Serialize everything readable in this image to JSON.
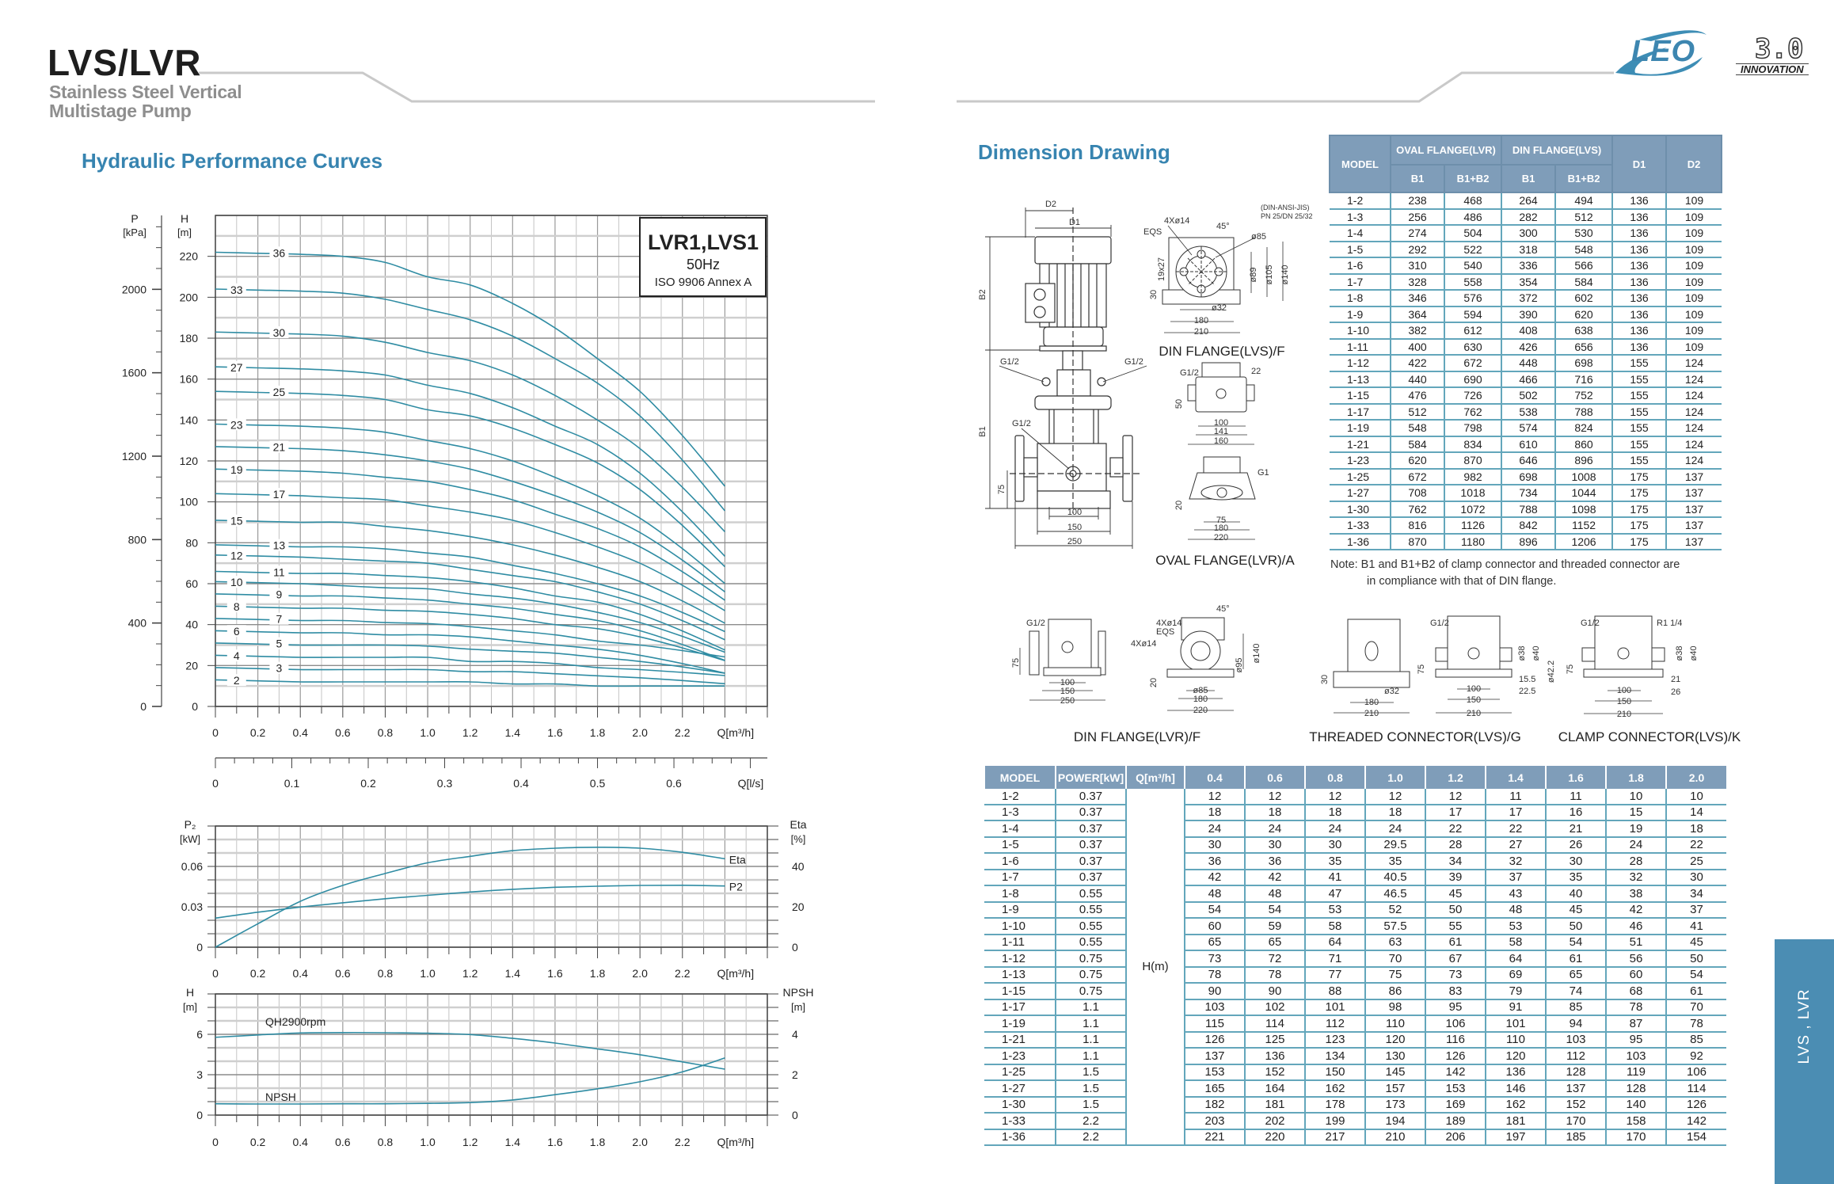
{
  "header": {
    "title": "LVS/LVR",
    "subtitle_line1": "Stainless Steel Vertical",
    "subtitle_line2": "Multistage Pump",
    "logo_text": "LEO",
    "logo_version": "3.0",
    "logo_tagline": "INNOVATION"
  },
  "side_tab": "LVS , LVR",
  "hydraulic": {
    "heading": "Hydraulic Performance Curves"
  },
  "dimension": {
    "heading": "Dimension Drawing",
    "main": {
      "d2": "D2",
      "d1": "D1",
      "b2": "B2",
      "b1": "B1",
      "d75": "75",
      "d100": "100",
      "d150": "150",
      "d250": "250",
      "g1": "G1/2",
      "g2": "G1/2",
      "g3": "G1/2"
    },
    "din_lvs": {
      "title": "DIN FLANGE(LVS)/F",
      "std": "(DIN-ANSI-JIS)",
      "pn": "PN 25/DN 25/32",
      "holes": "4Xø14",
      "eqs": "EQS",
      "angle": "45°",
      "d85": "ø85",
      "slot": "19x27",
      "d89": "ø89",
      "d105": "ø105",
      "d140": "ø140",
      "h30": "30",
      "d32": "ø32",
      "w180": "180",
      "w210": "210"
    },
    "oval_side": {
      "g": "G1/2",
      "d22": "22",
      "h50": "50",
      "w100": "100",
      "w141": "141",
      "w160": "160"
    },
    "oval_lvr": {
      "title": "OVAL FLANGE(LVR)/A",
      "g": "G1",
      "h20": "20",
      "w75": "75",
      "w180": "180",
      "w220": "220"
    },
    "din_lvr": {
      "title": "DIN FLANGE(LVR)/F",
      "g": "G1/2",
      "h75": "75",
      "w100": "100",
      "w150": "150",
      "w250": "250",
      "angle": "45°",
      "holes1": "4Xø14",
      "eqs": "EQS",
      "holes2": "4Xø14",
      "d140": "ø140",
      "d95": "ø95",
      "h20": "20",
      "d85": "ø85",
      "w180": "180",
      "w220": "220"
    },
    "threaded": {
      "title": "THREADED CONNECTOR(LVS)/G",
      "h30": "30",
      "d32": "ø32",
      "w180": "180",
      "w210a": "210",
      "g": "G1/2",
      "d38": "ø38",
      "d40": "ø40",
      "d42": "ø42.2",
      "h75": "75",
      "d155": "15.5",
      "d225": "22.5",
      "w100": "100",
      "w150": "150",
      "w210b": "210"
    },
    "clamp": {
      "title": "CLAMP CONNECTOR(LVS)/K",
      "g": "G1/2",
      "r": "R1 1/4",
      "d38": "ø38",
      "d40": "ø40",
      "h75": "75",
      "d21": "21",
      "d26": "26",
      "w100": "100",
      "w150": "150",
      "w210": "210"
    }
  },
  "dim_table": {
    "headers": {
      "model": "MODEL",
      "oval": "OVAL FLANGE(LVR)",
      "din": "DIN FLANGE(LVS)",
      "b1": "B1",
      "b1b2": "B1+B2",
      "d1": "D1",
      "d2": "D2"
    },
    "rows": [
      [
        "1-2",
        "238",
        "468",
        "264",
        "494",
        "136",
        "109"
      ],
      [
        "1-3",
        "256",
        "486",
        "282",
        "512",
        "136",
        "109"
      ],
      [
        "1-4",
        "274",
        "504",
        "300",
        "530",
        "136",
        "109"
      ],
      [
        "1-5",
        "292",
        "522",
        "318",
        "548",
        "136",
        "109"
      ],
      [
        "1-6",
        "310",
        "540",
        "336",
        "566",
        "136",
        "109"
      ],
      [
        "1-7",
        "328",
        "558",
        "354",
        "584",
        "136",
        "109"
      ],
      [
        "1-8",
        "346",
        "576",
        "372",
        "602",
        "136",
        "109"
      ],
      [
        "1-9",
        "364",
        "594",
        "390",
        "620",
        "136",
        "109"
      ],
      [
        "1-10",
        "382",
        "612",
        "408",
        "638",
        "136",
        "109"
      ],
      [
        "1-11",
        "400",
        "630",
        "426",
        "656",
        "136",
        "109"
      ],
      [
        "1-12",
        "422",
        "672",
        "448",
        "698",
        "155",
        "124"
      ],
      [
        "1-13",
        "440",
        "690",
        "466",
        "716",
        "155",
        "124"
      ],
      [
        "1-15",
        "476",
        "726",
        "502",
        "752",
        "155",
        "124"
      ],
      [
        "1-17",
        "512",
        "762",
        "538",
        "788",
        "155",
        "124"
      ],
      [
        "1-19",
        "548",
        "798",
        "574",
        "824",
        "155",
        "124"
      ],
      [
        "1-21",
        "584",
        "834",
        "610",
        "860",
        "155",
        "124"
      ],
      [
        "1-23",
        "620",
        "870",
        "646",
        "896",
        "155",
        "124"
      ],
      [
        "1-25",
        "672",
        "982",
        "698",
        "1008",
        "175",
        "137"
      ],
      [
        "1-27",
        "708",
        "1018",
        "734",
        "1044",
        "175",
        "137"
      ],
      [
        "1-30",
        "762",
        "1072",
        "788",
        "1098",
        "175",
        "137"
      ],
      [
        "1-33",
        "816",
        "1126",
        "842",
        "1152",
        "175",
        "137"
      ],
      [
        "1-36",
        "870",
        "1180",
        "896",
        "1206",
        "175",
        "137"
      ]
    ],
    "note_line1": "Note: B1 and B1+B2 of clamp connector and threaded connector are",
    "note_line2": "in compliance with that of DIN flange."
  },
  "perf_table": {
    "headers": [
      "MODEL",
      "POWER[kW]",
      "Q[m³/h]",
      "0.4",
      "0.6",
      "0.8",
      "1.0",
      "1.2",
      "1.4",
      "1.6",
      "1.8",
      "2.0"
    ],
    "h_label": "H(m)",
    "rows": [
      [
        "1-2",
        "0.37",
        "12",
        "12",
        "12",
        "12",
        "12",
        "11",
        "11",
        "10",
        "10"
      ],
      [
        "1-3",
        "0.37",
        "18",
        "18",
        "18",
        "18",
        "17",
        "17",
        "16",
        "15",
        "14"
      ],
      [
        "1-4",
        "0.37",
        "24",
        "24",
        "24",
        "24",
        "22",
        "22",
        "21",
        "19",
        "18"
      ],
      [
        "1-5",
        "0.37",
        "30",
        "30",
        "30",
        "29.5",
        "28",
        "27",
        "26",
        "24",
        "22"
      ],
      [
        "1-6",
        "0.37",
        "36",
        "36",
        "35",
        "35",
        "34",
        "32",
        "30",
        "28",
        "25"
      ],
      [
        "1-7",
        "0.37",
        "42",
        "42",
        "41",
        "40.5",
        "39",
        "37",
        "35",
        "32",
        "30"
      ],
      [
        "1-8",
        "0.55",
        "48",
        "48",
        "47",
        "46.5",
        "45",
        "43",
        "40",
        "38",
        "34"
      ],
      [
        "1-9",
        "0.55",
        "54",
        "54",
        "53",
        "52",
        "50",
        "48",
        "45",
        "42",
        "37"
      ],
      [
        "1-10",
        "0.55",
        "60",
        "59",
        "58",
        "57.5",
        "55",
        "53",
        "50",
        "46",
        "41"
      ],
      [
        "1-11",
        "0.55",
        "65",
        "65",
        "64",
        "63",
        "61",
        "58",
        "54",
        "51",
        "45"
      ],
      [
        "1-12",
        "0.75",
        "73",
        "72",
        "71",
        "70",
        "67",
        "64",
        "61",
        "56",
        "50"
      ],
      [
        "1-13",
        "0.75",
        "78",
        "78",
        "77",
        "75",
        "73",
        "69",
        "65",
        "60",
        "54"
      ],
      [
        "1-15",
        "0.75",
        "90",
        "90",
        "88",
        "86",
        "83",
        "79",
        "74",
        "68",
        "61"
      ],
      [
        "1-17",
        "1.1",
        "103",
        "102",
        "101",
        "98",
        "95",
        "91",
        "85",
        "78",
        "70"
      ],
      [
        "1-19",
        "1.1",
        "115",
        "114",
        "112",
        "110",
        "106",
        "101",
        "94",
        "87",
        "78"
      ],
      [
        "1-21",
        "1.1",
        "126",
        "125",
        "123",
        "120",
        "116",
        "110",
        "103",
        "95",
        "85"
      ],
      [
        "1-23",
        "1.1",
        "137",
        "136",
        "134",
        "130",
        "126",
        "120",
        "112",
        "103",
        "92"
      ],
      [
        "1-25",
        "1.5",
        "153",
        "152",
        "150",
        "145",
        "142",
        "136",
        "128",
        "119",
        "106"
      ],
      [
        "1-27",
        "1.5",
        "165",
        "164",
        "162",
        "157",
        "153",
        "146",
        "137",
        "128",
        "114"
      ],
      [
        "1-30",
        "1.5",
        "182",
        "181",
        "178",
        "173",
        "169",
        "162",
        "152",
        "140",
        "126"
      ],
      [
        "1-33",
        "2.2",
        "203",
        "202",
        "199",
        "194",
        "189",
        "181",
        "170",
        "158",
        "142"
      ],
      [
        "1-36",
        "2.2",
        "221",
        "220",
        "217",
        "210",
        "206",
        "197",
        "185",
        "170",
        "154"
      ]
    ]
  },
  "chart_data": [
    {
      "type": "line",
      "title": "LVR1,LVS1",
      "subtitle": "50Hz",
      "note": "ISO 9906 Annex A",
      "xlabel": "Q[m³/h]",
      "x2label": "Q[l/s]",
      "ylabel": "H",
      "yunit": "[m]",
      "plabel": "P",
      "punit": "[kPa]",
      "xlim": [
        0,
        2.6
      ],
      "ylim": [
        0,
        240
      ],
      "grid": true,
      "x_ticks": [
        "0",
        "0.2",
        "0.4",
        "0.6",
        "0.8",
        "1.0",
        "1.2",
        "1.4",
        "1.6",
        "1.8",
        "2.0",
        "2.2"
      ],
      "y_ticks": [
        "0",
        "20",
        "40",
        "60",
        "80",
        "100",
        "120",
        "140",
        "160",
        "180",
        "200",
        "220"
      ],
      "p_ticks": [
        "0",
        "400",
        "800",
        "1200",
        "1600",
        "2000"
      ],
      "ls_ticks": [
        "0",
        "0.1",
        "0.2",
        "0.3",
        "0.4",
        "0.5",
        "0.6"
      ],
      "x": [
        0.4,
        0.6,
        0.8,
        1.0,
        1.2,
        1.4,
        1.6,
        1.8,
        2.0
      ],
      "series": [
        {
          "name": "1-36",
          "label": "36",
          "values": [
            221,
            220,
            217,
            210,
            206,
            197,
            185,
            170,
            154
          ]
        },
        {
          "name": "1-33",
          "label": "33",
          "values": [
            203,
            202,
            199,
            194,
            189,
            181,
            170,
            158,
            142
          ]
        },
        {
          "name": "1-30",
          "label": "30",
          "values": [
            182,
            181,
            178,
            173,
            169,
            162,
            152,
            140,
            126
          ]
        },
        {
          "name": "1-27",
          "label": "27",
          "values": [
            165,
            164,
            162,
            157,
            153,
            146,
            137,
            128,
            114
          ]
        },
        {
          "name": "1-25",
          "label": "25",
          "values": [
            153,
            152,
            150,
            145,
            142,
            136,
            128,
            119,
            106
          ]
        },
        {
          "name": "1-23",
          "label": "23",
          "values": [
            137,
            136,
            134,
            130,
            126,
            120,
            112,
            103,
            92
          ]
        },
        {
          "name": "1-21",
          "label": "21",
          "values": [
            126,
            125,
            123,
            120,
            116,
            110,
            103,
            95,
            85
          ]
        },
        {
          "name": "1-19",
          "label": "19",
          "values": [
            115,
            114,
            112,
            110,
            106,
            101,
            94,
            87,
            78
          ]
        },
        {
          "name": "1-17",
          "label": "17",
          "values": [
            103,
            102,
            101,
            98,
            95,
            91,
            85,
            78,
            70
          ]
        },
        {
          "name": "1-15",
          "label": "15",
          "values": [
            90,
            90,
            88,
            86,
            83,
            79,
            74,
            68,
            61
          ]
        },
        {
          "name": "1-13",
          "label": "13",
          "values": [
            78,
            78,
            77,
            75,
            73,
            69,
            65,
            60,
            54
          ]
        },
        {
          "name": "1-12",
          "label": "12",
          "values": [
            73,
            72,
            71,
            70,
            67,
            64,
            61,
            56,
            50
          ]
        },
        {
          "name": "1-11",
          "label": "11",
          "values": [
            65,
            65,
            64,
            63,
            61,
            58,
            54,
            51,
            45
          ]
        },
        {
          "name": "1-10",
          "label": "10",
          "values": [
            60,
            59,
            58,
            57.5,
            55,
            53,
            50,
            46,
            41
          ]
        },
        {
          "name": "1-9",
          "label": "9",
          "values": [
            54,
            54,
            53,
            52,
            50,
            48,
            45,
            42,
            37
          ]
        },
        {
          "name": "1-8",
          "label": "8",
          "values": [
            48,
            48,
            47,
            46.5,
            45,
            43,
            40,
            38,
            34
          ]
        },
        {
          "name": "1-7",
          "label": "7",
          "values": [
            42,
            42,
            41,
            40.5,
            39,
            37,
            35,
            32,
            30
          ]
        },
        {
          "name": "1-6",
          "label": "6",
          "values": [
            36,
            36,
            35,
            35,
            34,
            32,
            30,
            28,
            25
          ]
        },
        {
          "name": "1-5",
          "label": "5",
          "values": [
            30,
            30,
            30,
            29.5,
            28,
            27,
            26,
            24,
            22
          ]
        },
        {
          "name": "1-4",
          "label": "4",
          "values": [
            24,
            24,
            24,
            24,
            22,
            22,
            21,
            19,
            18
          ]
        },
        {
          "name": "1-3",
          "label": "3",
          "values": [
            18,
            18,
            18,
            18,
            17,
            17,
            16,
            15,
            14
          ]
        },
        {
          "name": "1-2",
          "label": "2",
          "values": [
            12,
            12,
            12,
            12,
            12,
            11,
            11,
            10,
            10
          ]
        }
      ]
    },
    {
      "type": "line",
      "xlabel": "Q[m³/h]",
      "ylabel": "P₂",
      "yunit": "[kW]",
      "y2label": "Eta",
      "y2unit": "[%]",
      "xlim": [
        0,
        2.6
      ],
      "ylim": [
        0,
        0.09
      ],
      "y2lim": [
        0,
        60
      ],
      "x_ticks": [
        "0",
        "0.2",
        "0.4",
        "0.6",
        "0.8",
        "1.0",
        "1.2",
        "1.4",
        "1.6",
        "1.8",
        "2.0",
        "2.2"
      ],
      "y_ticks": [
        "0",
        "0.03",
        "0.06"
      ],
      "y2_ticks": [
        "0",
        "20",
        "40"
      ],
      "x": [
        0,
        0.2,
        0.4,
        0.6,
        0.8,
        1.0,
        1.2,
        1.4,
        1.6,
        1.8,
        2.0,
        2.2,
        2.4
      ],
      "series": [
        {
          "name": "Eta",
          "axis": "right",
          "values": [
            0,
            11.6,
            22.7,
            30.6,
            36.5,
            41.8,
            45,
            47.8,
            49,
            49.5,
            49,
            47,
            43.8
          ]
        },
        {
          "name": "P2",
          "axis": "left",
          "values": [
            0.0216,
            0.026,
            0.0298,
            0.033,
            0.036,
            0.0385,
            0.041,
            0.043,
            0.0445,
            0.0453,
            0.0459,
            0.046,
            0.0455
          ]
        }
      ]
    },
    {
      "type": "line",
      "xlabel": "Q[m³/h]",
      "ylabel": "H",
      "yunit": "[m]",
      "y2label": "NPSH",
      "y2unit": "[m]",
      "xlim": [
        0,
        2.6
      ],
      "ylim": [
        0,
        9
      ],
      "y2lim": [
        0,
        6
      ],
      "x_ticks": [
        "0",
        "0.2",
        "0.4",
        "0.6",
        "0.8",
        "1.0",
        "1.2",
        "1.4",
        "1.6",
        "1.8",
        "2.0",
        "2.2"
      ],
      "y_ticks": [
        "0",
        "3",
        "6"
      ],
      "y2_ticks": [
        "0",
        "2",
        "4"
      ],
      "x": [
        0,
        0.2,
        0.4,
        0.6,
        0.8,
        1.0,
        1.2,
        1.4,
        1.6,
        1.8,
        2.0,
        2.2,
        2.4
      ],
      "series": [
        {
          "name": "QH2900rpm",
          "axis": "left",
          "values": [
            5.78,
            5.95,
            6.1,
            6.13,
            6.12,
            6.08,
            5.98,
            5.7,
            5.35,
            4.92,
            4.48,
            3.95,
            3.41
          ]
        },
        {
          "name": "NPSH",
          "axis": "right",
          "values": [
            0.56,
            0.55,
            0.55,
            0.56,
            0.56,
            0.58,
            0.62,
            0.75,
            1.01,
            1.3,
            1.65,
            2.14,
            2.83
          ]
        }
      ]
    }
  ],
  "colors": {
    "curve": "#2f8ca3",
    "heading": "#3784b0",
    "table_header": "#7f9db9",
    "table_line": "#63a6bb",
    "side_tab": "#4b8db3"
  }
}
